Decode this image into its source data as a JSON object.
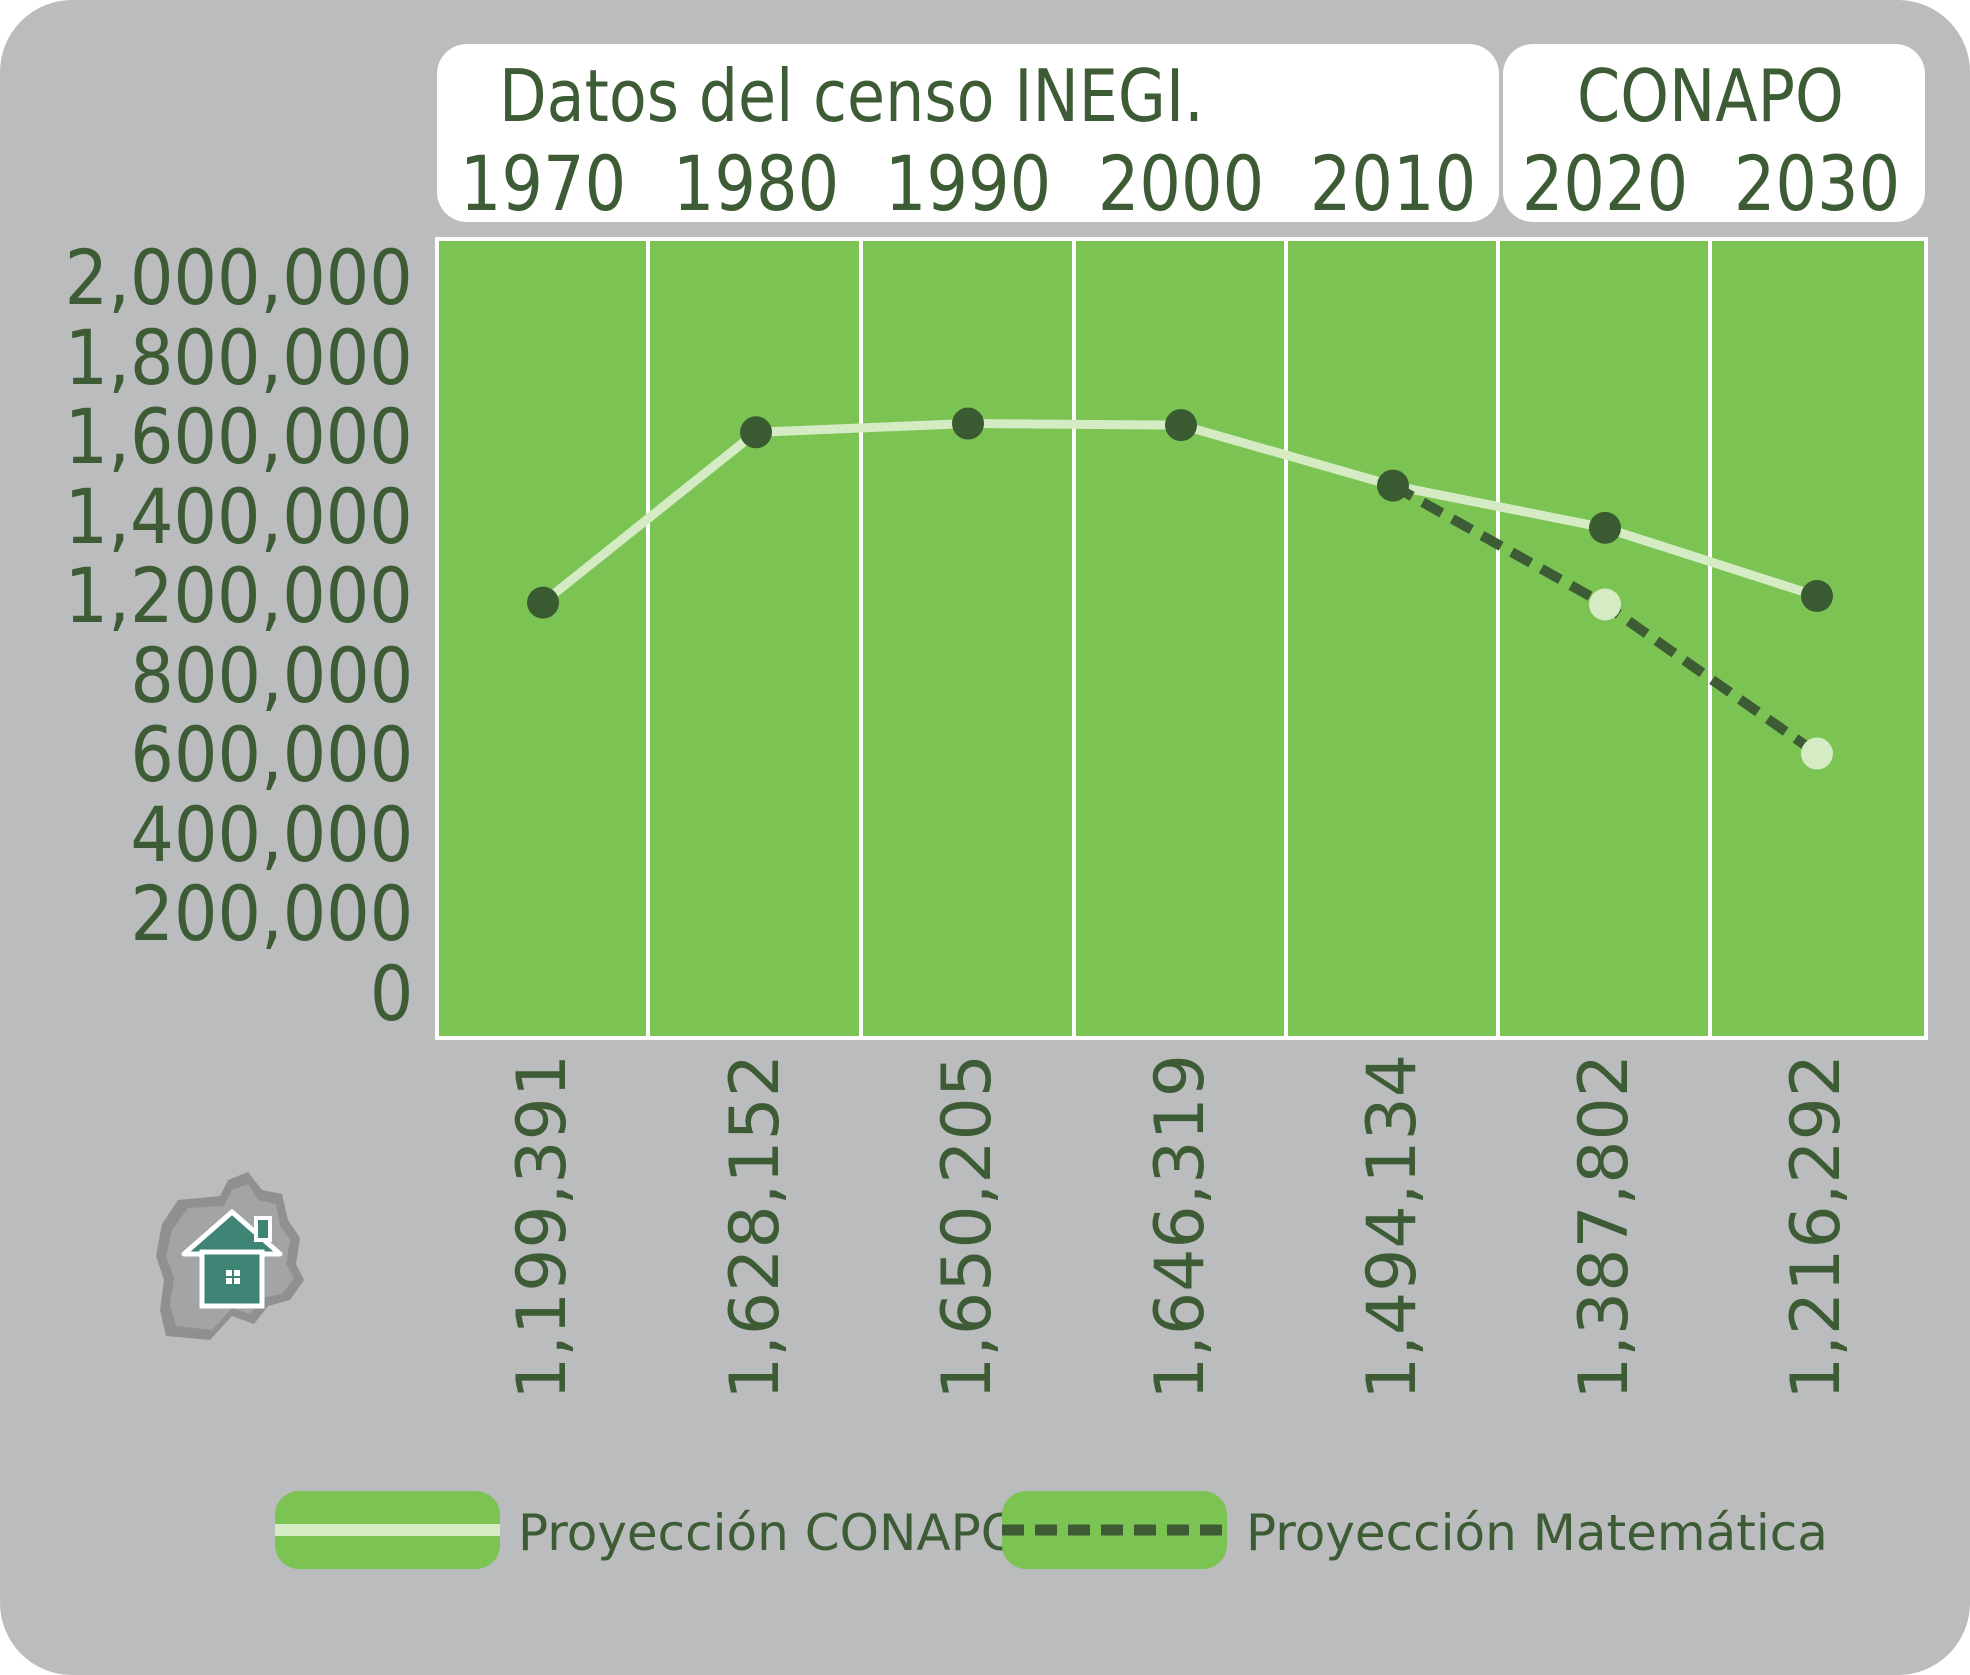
{
  "header": {
    "inegi_title": "Datos del censo INEGI.",
    "conapo_title": "CONAPO"
  },
  "y_axis_ticks": [
    "2,000,000",
    "1,800,000",
    "1,600,000",
    "1,400,000",
    "1,200,000",
    "800,000",
    "600,000",
    "400,000",
    "200,000",
    "0"
  ],
  "legend": {
    "conapo_label": "Proyección CONAPO",
    "math_label": "Proyección Matemática"
  },
  "colors": {
    "background": "#bbbcbe",
    "plot_fill": "#7bc352",
    "conapo_line": "#d4ebc4",
    "math_line": "#3d5c35",
    "text": "#3d5c35",
    "icon": "#3e8575"
  },
  "icon_name": "home-map-icon",
  "chart_data": {
    "type": "line",
    "categories": [
      "1970",
      "1980",
      "1990",
      "2000",
      "2010",
      "2020",
      "2030"
    ],
    "value_labels": [
      "1,199,391",
      "1,628,152",
      "1,650,205",
      "1,646,319",
      "1,494,134",
      "1,387,802",
      "1,216,292"
    ],
    "y_tick_values": [
      2000000,
      1800000,
      1600000,
      1400000,
      1200000,
      800000,
      600000,
      400000,
      200000,
      0
    ],
    "series": [
      {
        "name": "Proyección CONAPO",
        "style": "solid",
        "values": [
          1199391,
          1628152,
          1650205,
          1646319,
          1494134,
          1387802,
          1216292
        ]
      },
      {
        "name": "Proyección Matemática",
        "style": "dashed",
        "values": [
          null,
          null,
          null,
          null,
          1494134,
          1190000,
          620000
        ]
      }
    ],
    "grid": false,
    "legend_position": "bottom"
  }
}
